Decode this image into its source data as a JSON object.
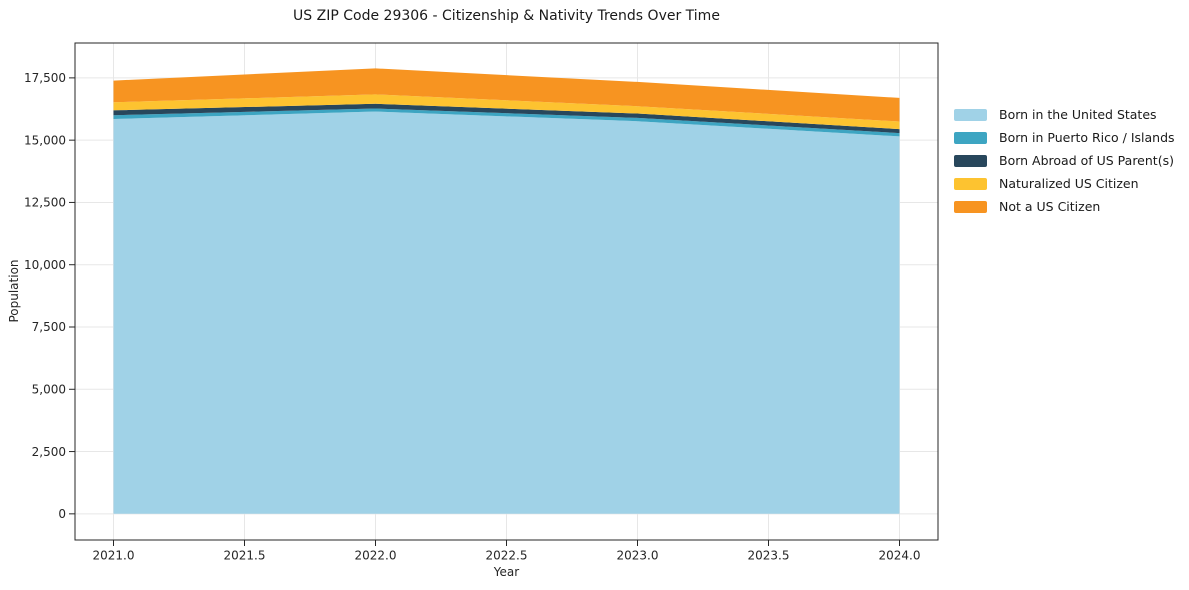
{
  "page": {
    "background": "#ffffff"
  },
  "chart": {
    "title": "US ZIP Code 29306 - Citizenship & Nativity Trends Over Time",
    "xlabel": "Year",
    "ylabel": "Population"
  },
  "chart_data": {
    "type": "area",
    "stacked": true,
    "title": "US ZIP Code 29306 - Citizenship & Nativity Trends Over Time",
    "xlabel": "Year",
    "ylabel": "Population",
    "x": [
      2021,
      2022,
      2023,
      2024
    ],
    "series": [
      {
        "name": "Born in the United States",
        "color": "#a0d2e7",
        "values": [
          15850,
          16150,
          15760,
          15150
        ]
      },
      {
        "name": "Born in Puerto Rico / Islands",
        "color": "#3da5c2",
        "values": [
          150,
          120,
          135,
          135
        ]
      },
      {
        "name": "Born Abroad of US Parent(s)",
        "color": "#28475c",
        "values": [
          200,
          190,
          175,
          160
        ]
      },
      {
        "name": "Naturalized US Citizen",
        "color": "#fdc330",
        "values": [
          320,
          375,
          295,
          305
        ]
      },
      {
        "name": "Not a US Citizen",
        "color": "#f79421",
        "values": [
          870,
          1045,
          975,
          945
        ]
      }
    ],
    "totals": [
      17390,
      17880,
      17340,
      16695
    ],
    "xticks": {
      "values": [
        2021.0,
        2021.5,
        2022.0,
        2022.5,
        2023.0,
        2023.5,
        2024.0
      ],
      "labels": [
        "2021.0",
        "2021.5",
        "2022.0",
        "2022.5",
        "2023.0",
        "2023.5",
        "2024.0"
      ]
    },
    "yticks": {
      "values": [
        0,
        2500,
        5000,
        7500,
        10000,
        12500,
        15000,
        17500
      ],
      "labels": [
        "0",
        "2,500",
        "5,000",
        "7,500",
        "10,000",
        "12,500",
        "15,000",
        "17,500"
      ]
    },
    "xlim": [
      2020.853,
      2024.147
    ],
    "ylim": [
      -1050,
      18900
    ],
    "grid": true,
    "legend_position": "right-outside",
    "style": {
      "grid_color": "#e7e7e7",
      "spine_color": "#262626",
      "tick_color": "#262626",
      "tick_label_color": "#262626",
      "title_color": "#1a1a1a"
    }
  }
}
